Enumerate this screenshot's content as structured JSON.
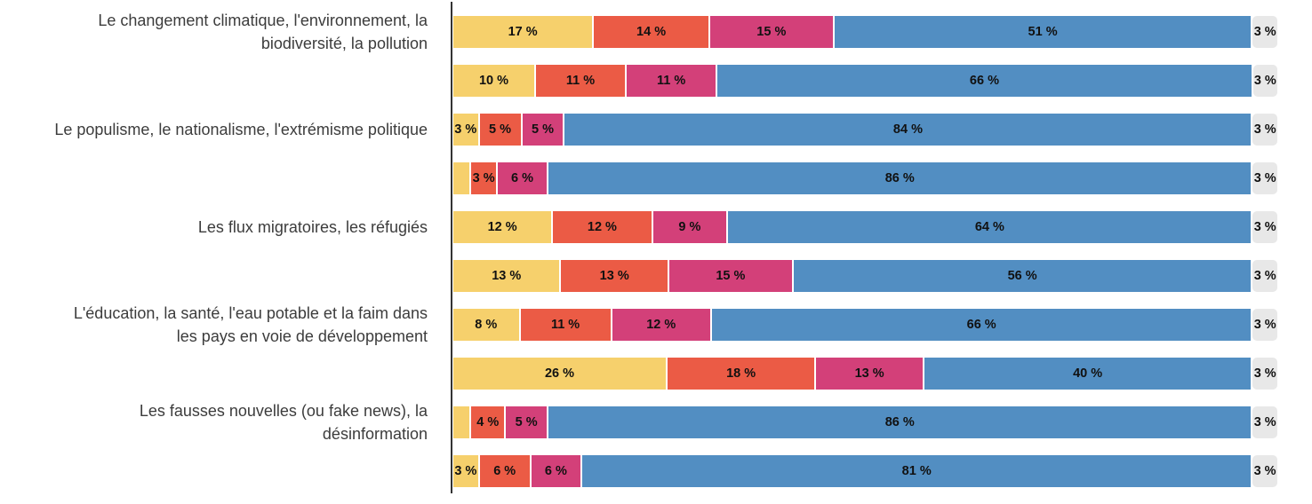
{
  "chart_data": {
    "type": "bar",
    "orientation": "horizontal",
    "stacked": true,
    "title": "",
    "xlabel": "",
    "ylabel": "",
    "xlim": [
      0,
      100
    ],
    "grid": false,
    "legend": "none",
    "value_suffix": " %",
    "axis_color": "#333333",
    "category_label_color": "#3c3c3c",
    "value_label_color": "#111111",
    "series_colors": [
      "#F6D06C",
      "#EB5B45",
      "#D34079",
      "#528EC2",
      "#E8E8E8"
    ],
    "series_keys": [
      "yellow",
      "orange",
      "magenta",
      "blue",
      "gray"
    ],
    "groups": [
      {
        "label": "Le changement climatique, l'environnement, la biodiversité, la pollution",
        "bars": [
          {
            "values": [
              17,
              14,
              15,
              51,
              3
            ],
            "labels": [
              "17 %",
              "14 %",
              "15 %",
              "51 %",
              "3 %"
            ]
          },
          {
            "values": [
              10,
              11,
              11,
              66,
              3
            ],
            "labels": [
              "10 %",
              "11 %",
              "11 %",
              "66 %",
              "3 %"
            ]
          }
        ]
      },
      {
        "label": "Le populisme, le nationalisme, l'extrémisme politique",
        "bars": [
          {
            "values": [
              3,
              5,
              5,
              84,
              3
            ],
            "labels": [
              "3 %",
              "5 %",
              "5 %",
              "84 %",
              "3 %"
            ]
          },
          {
            "values": [
              2,
              3,
              6,
              86,
              3
            ],
            "labels": [
              "",
              "3 %",
              "6 %",
              "86 %",
              "3 %"
            ]
          }
        ]
      },
      {
        "label": "Les flux migratoires, les réfugiés",
        "bars": [
          {
            "values": [
              12,
              12,
              9,
              64,
              3
            ],
            "labels": [
              "12 %",
              "12 %",
              "9 %",
              "64 %",
              "3 %"
            ]
          },
          {
            "values": [
              13,
              13,
              15,
              56,
              3
            ],
            "labels": [
              "13 %",
              "13 %",
              "15 %",
              "56 %",
              "3 %"
            ]
          }
        ]
      },
      {
        "label": "L'éducation, la santé, l'eau potable et la faim dans les pays en voie de développement",
        "bars": [
          {
            "values": [
              8,
              11,
              12,
              66,
              3
            ],
            "labels": [
              "8 %",
              "11 %",
              "12 %",
              "66 %",
              "3 %"
            ]
          },
          {
            "values": [
              26,
              18,
              13,
              40,
              3
            ],
            "labels": [
              "26 %",
              "18 %",
              "13 %",
              "40 %",
              "3 %"
            ]
          }
        ]
      },
      {
        "label": "Les fausses nouvelles (ou fake news), la désinformation",
        "bars": [
          {
            "values": [
              2,
              4,
              5,
              86,
              3
            ],
            "labels": [
              "",
              "4 %",
              "5 %",
              "86 %",
              "3 %"
            ]
          },
          {
            "values": [
              3,
              6,
              6,
              81,
              3
            ],
            "labels": [
              "3 %",
              "6 %",
              "6 %",
              "81 %",
              "3 %"
            ]
          }
        ]
      }
    ]
  }
}
